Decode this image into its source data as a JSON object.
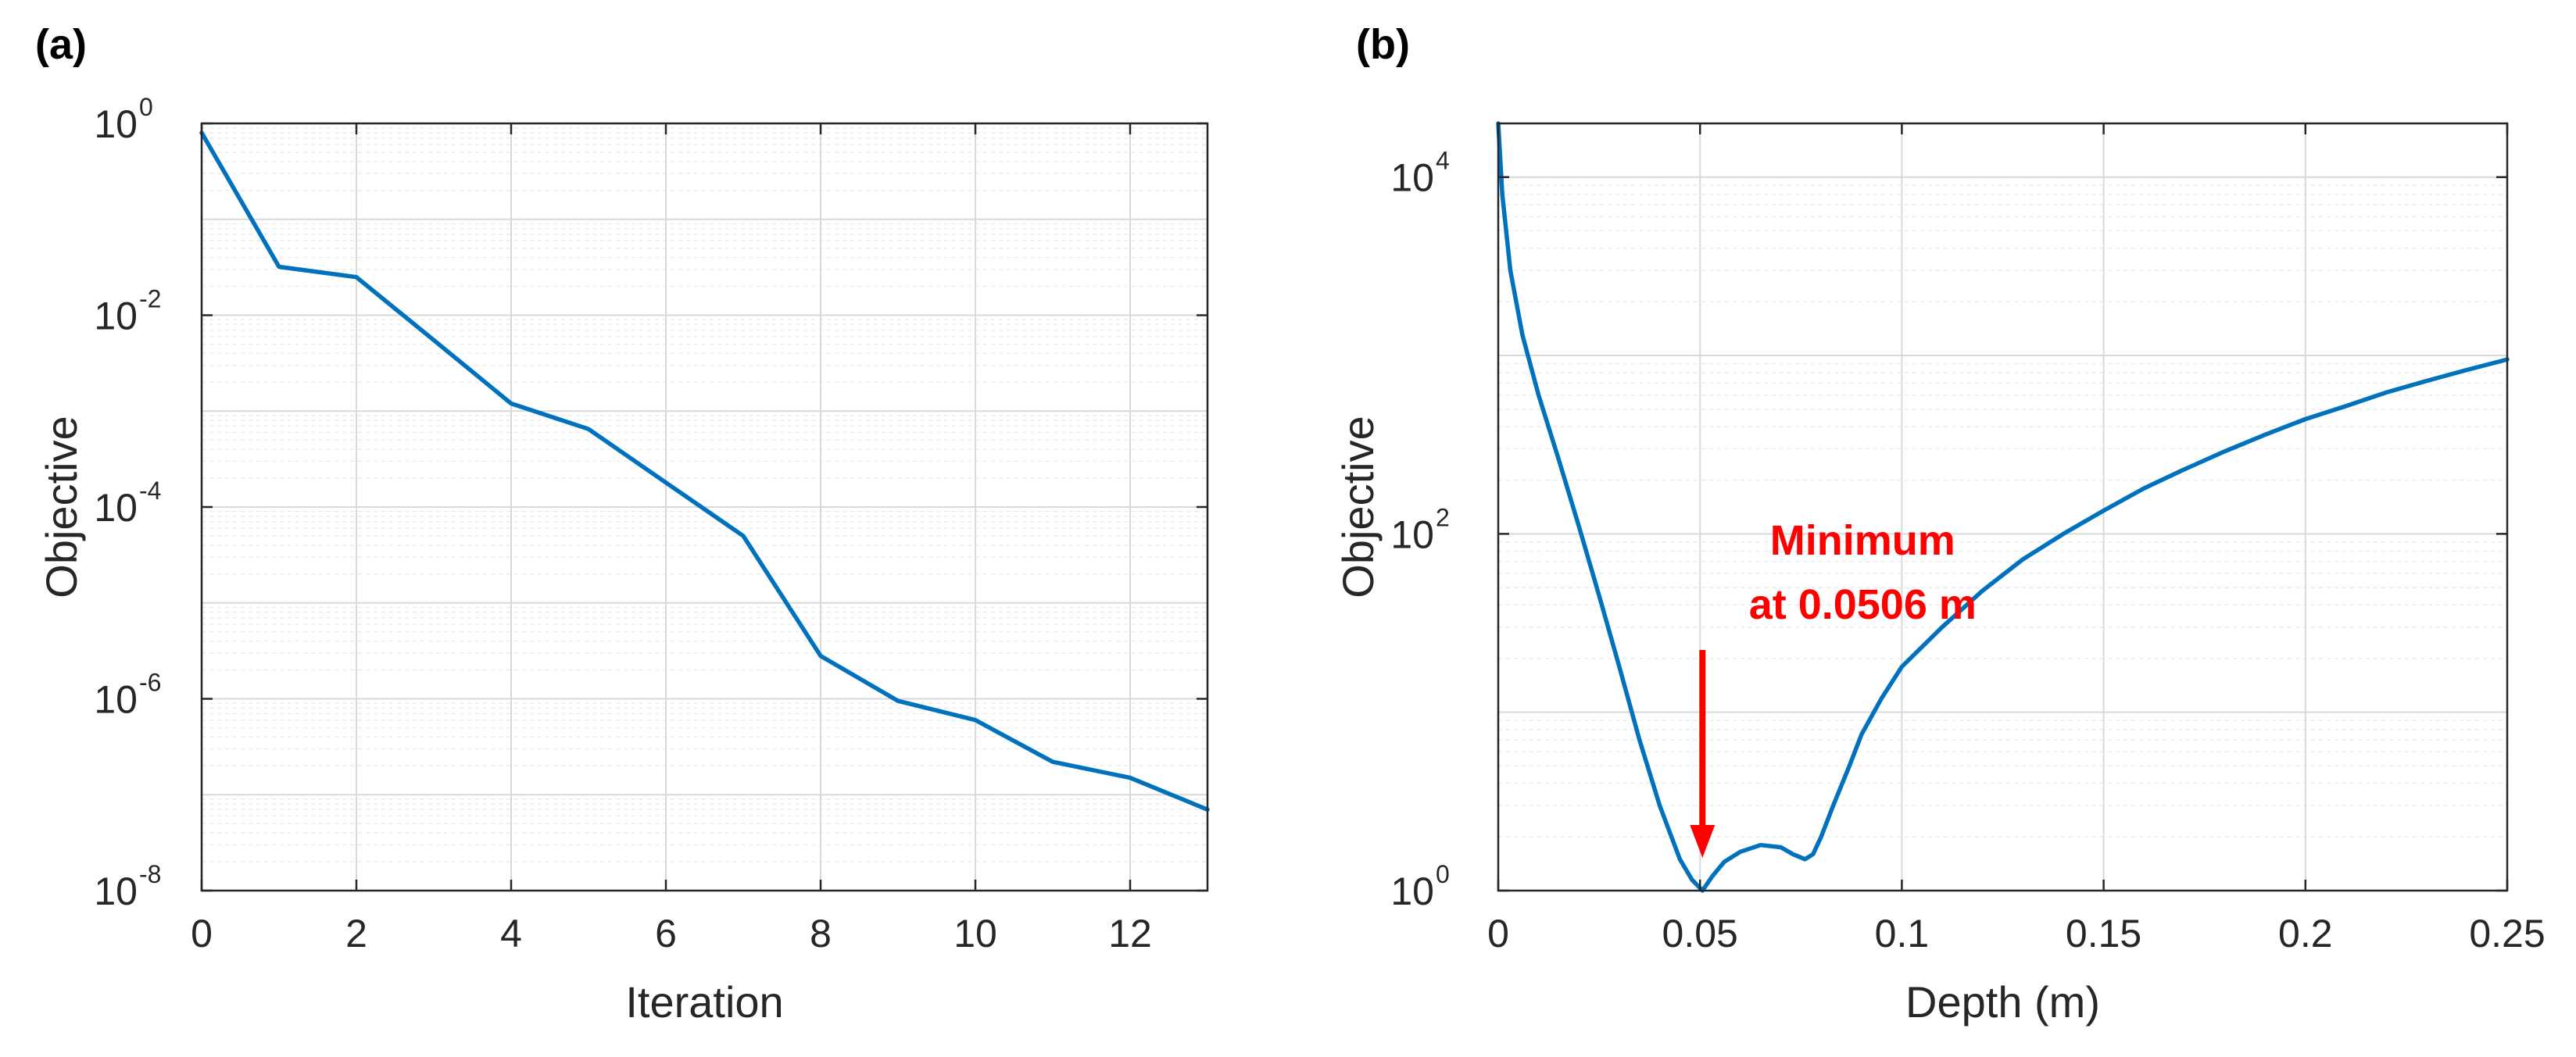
{
  "colors": {
    "series": "#0072bd",
    "annotation": "#ff0000",
    "axis": "#262626"
  },
  "chart_data": [
    {
      "panel": "(a)",
      "type": "line",
      "yscale": "log",
      "xlabel": "Iteration",
      "ylabel": "Objective",
      "xlim": [
        0,
        13
      ],
      "ylim": [
        1e-08,
        1
      ],
      "xticks": [
        0,
        2,
        4,
        6,
        8,
        10,
        12
      ],
      "xtick_labels": [
        "0",
        "2",
        "4",
        "6",
        "8",
        "10",
        "12"
      ],
      "yticks": [
        1e-08,
        1e-06,
        0.0001,
        0.01,
        1
      ],
      "ytick_labels": [
        {
          "base": "10",
          "exp": "-8"
        },
        {
          "base": "10",
          "exp": "-6"
        },
        {
          "base": "10",
          "exp": "-4"
        },
        {
          "base": "10",
          "exp": "-2"
        },
        {
          "base": "10",
          "exp": "0"
        }
      ],
      "grid": true,
      "series": [
        {
          "name": "Objective",
          "x": [
            0,
            1,
            2,
            3,
            4,
            5,
            6,
            7,
            8,
            9,
            10,
            11,
            12,
            13
          ],
          "y": [
            0.8,
            0.032,
            0.025,
            0.0055,
            0.0012,
            0.00065,
            0.00018,
            5e-05,
            2.8e-06,
            9.5e-07,
            6e-07,
            2.2e-07,
            1.5e-07,
            7e-08
          ]
        }
      ]
    },
    {
      "panel": "(b)",
      "type": "line",
      "yscale": "log",
      "xlabel": "Depth (m)",
      "ylabel": "Objective",
      "xlim": [
        0,
        0.25
      ],
      "ylim": [
        1,
        20000
      ],
      "xticks": [
        0,
        0.05,
        0.1,
        0.15,
        0.2,
        0.25
      ],
      "xtick_labels": [
        "0",
        "0.05",
        "0.1",
        "0.15",
        "0.2",
        "0.25"
      ],
      "yticks": [
        1,
        100,
        10000
      ],
      "ytick_labels": [
        {
          "base": "10",
          "exp": "0"
        },
        {
          "base": "10",
          "exp": "2"
        },
        {
          "base": "10",
          "exp": "4"
        }
      ],
      "grid": true,
      "annotation": {
        "line1": "Minimum",
        "line2": "at 0.0506 m",
        "x": 0.0506
      },
      "series": [
        {
          "name": "Objective",
          "x": [
            0.0,
            0.001,
            0.003,
            0.006,
            0.01,
            0.015,
            0.02,
            0.025,
            0.03,
            0.035,
            0.04,
            0.045,
            0.048,
            0.0506,
            0.053,
            0.056,
            0.06,
            0.065,
            0.07,
            0.073,
            0.076,
            0.078,
            0.08,
            0.083,
            0.087,
            0.09,
            0.095,
            0.1,
            0.11,
            0.12,
            0.13,
            0.14,
            0.15,
            0.16,
            0.17,
            0.18,
            0.19,
            0.2,
            0.21,
            0.22,
            0.23,
            0.24,
            0.25
          ],
          "y": [
            20000,
            8000,
            3000,
            1300,
            600,
            260,
            110,
            45,
            18,
            7,
            3,
            1.5,
            1.15,
            1.0,
            1.2,
            1.45,
            1.65,
            1.8,
            1.75,
            1.6,
            1.5,
            1.6,
            2.0,
            3.0,
            5.0,
            7.5,
            12,
            18,
            30,
            48,
            72,
            100,
            135,
            180,
            230,
            290,
            360,
            440,
            520,
            620,
            720,
            830,
            950
          ]
        }
      ]
    }
  ]
}
